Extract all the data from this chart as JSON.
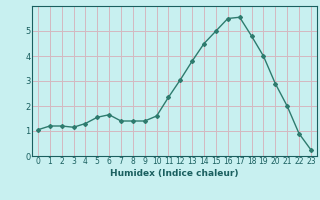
{
  "x": [
    0,
    1,
    2,
    3,
    4,
    5,
    6,
    7,
    8,
    9,
    10,
    11,
    12,
    13,
    14,
    15,
    16,
    17,
    18,
    19,
    20,
    21,
    22,
    23
  ],
  "y": [
    1.05,
    1.2,
    1.2,
    1.15,
    1.3,
    1.55,
    1.65,
    1.4,
    1.4,
    1.4,
    1.6,
    2.35,
    3.05,
    3.8,
    4.5,
    5.0,
    5.5,
    5.55,
    4.8,
    4.0,
    2.9,
    2.0,
    0.9,
    0.25
  ],
  "xlabel": "Humidex (Indice chaleur)",
  "ylim": [
    0,
    6
  ],
  "xlim_min": -0.5,
  "xlim_max": 23.5,
  "yticks": [
    0,
    1,
    2,
    3,
    4,
    5
  ],
  "xticks": [
    0,
    1,
    2,
    3,
    4,
    5,
    6,
    7,
    8,
    9,
    10,
    11,
    12,
    13,
    14,
    15,
    16,
    17,
    18,
    19,
    20,
    21,
    22,
    23
  ],
  "bg_color": "#c8f0f0",
  "grid_color": "#d4b8c0",
  "line_color": "#2e7b6e",
  "marker_color": "#2e7b6e",
  "text_color": "#1a5f5f",
  "tick_fontsize": 5.5,
  "xlabel_fontsize": 6.5
}
